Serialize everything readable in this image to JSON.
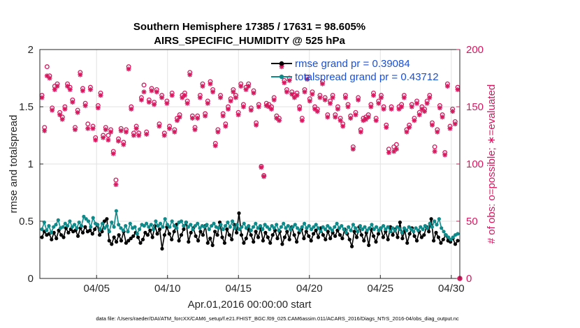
{
  "chart_data": {
    "type": "line",
    "title_line1": "Southern Hemisphere 17385 / 17631 = 98.605%",
    "title_line2": "AIRS_SPECIFIC_HUMIDITY @ 525 hPa",
    "xlabel": "Apr.01,2016 00:00:00 start",
    "ylabel_left": "rmse and totalspread",
    "ylabel_right": "# of obs: o=possible; ∗=evaluated",
    "footer": "data file: /Users/raeder/DAI/ATM_forcXX/CAM6_setup/f.e21.FHIST_BGC.f09_025.CAM6assim.011/ACARS_2016/Diags_NTrS_2016-04/obs_diag_output.nc",
    "x_tick_labels": [
      "04/05",
      "04/10",
      "04/15",
      "04/20",
      "04/25",
      "04/30"
    ],
    "x_tick_days": [
      5,
      10,
      15,
      20,
      25,
      30
    ],
    "xlim": [
      1,
      30.6
    ],
    "ylim_left": [
      0,
      2
    ],
    "y_ticks_left": [
      "0",
      "0.5",
      "1",
      "1.5",
      "2"
    ],
    "ylim_right": [
      0,
      200
    ],
    "y_ticks_right": [
      "0",
      "50",
      "100",
      "150",
      "200"
    ],
    "legend": [
      "rmse grand pr = 0.39084",
      "totalspread grand pr = 0.43712"
    ],
    "colors": {
      "rmse": "#000000",
      "spread": "#0f8a8a",
      "obs": "#d6185e",
      "legend_text": "#1a4fd6"
    },
    "series": [
      {
        "name": "rmse",
        "values": [
          0.36,
          0.41,
          0.38,
          0.39,
          0.34,
          0.4,
          0.35,
          0.42,
          0.38,
          0.36,
          0.44,
          0.4,
          0.43,
          0.41,
          0.42,
          0.37,
          0.44,
          0.4,
          0.45,
          0.41,
          0.42,
          0.39,
          0.43,
          0.47,
          0.38,
          0.41,
          0.5,
          0.52,
          0.33,
          0.3,
          0.36,
          0.32,
          0.38,
          0.33,
          0.41,
          0.31,
          0.33,
          0.35,
          0.37,
          0.4,
          0.36,
          0.31,
          0.34,
          0.4,
          0.38,
          0.42,
          0.36,
          0.46,
          0.39,
          0.43,
          0.26,
          0.38,
          0.45,
          0.39,
          0.34,
          0.41,
          0.47,
          0.33,
          0.38,
          0.43,
          0.49,
          0.32,
          0.4,
          0.44,
          0.37,
          0.33,
          0.41,
          0.38,
          0.46,
          0.31,
          0.35,
          0.29,
          0.41,
          0.38,
          0.49,
          0.36,
          0.31,
          0.43,
          0.38,
          0.34,
          0.47,
          0.4,
          0.57,
          0.38,
          0.31,
          0.35,
          0.43,
          0.38,
          0.32,
          0.41,
          0.36,
          0.44,
          0.33,
          0.4,
          0.36,
          0.31,
          0.38,
          0.42,
          0.35,
          0.41,
          0.3,
          0.36,
          0.41,
          0.34,
          0.45,
          0.38,
          0.32,
          0.4,
          0.43,
          0.35,
          0.41,
          0.37,
          0.33,
          0.39,
          0.42,
          0.36,
          0.44,
          0.38,
          0.34,
          0.41,
          0.35,
          0.4,
          0.37,
          0.42,
          0.38,
          0.35,
          0.43,
          0.39,
          0.34,
          0.28,
          0.41,
          0.36,
          0.45,
          0.38,
          0.33,
          0.4,
          0.29,
          0.43,
          0.37,
          0.32,
          0.39,
          0.44,
          0.36,
          0.41,
          0.34,
          0.45,
          0.38,
          0.43,
          0.36,
          0.49,
          0.35,
          0.42,
          0.31,
          0.39,
          0.44,
          0.37,
          0.33,
          0.41,
          0.36,
          0.38,
          0.45,
          0.41,
          0.52,
          0.33,
          0.4,
          0.36,
          0.31,
          0.34,
          0.38,
          0.33,
          0.32,
          0.35,
          0.3,
          0.33
        ]
      },
      {
        "name": "totalspread",
        "values": [
          0.43,
          0.49,
          0.42,
          0.46,
          0.4,
          0.45,
          0.47,
          0.51,
          0.44,
          0.45,
          0.48,
          0.46,
          0.5,
          0.45,
          0.47,
          0.44,
          0.49,
          0.46,
          0.54,
          0.52,
          0.5,
          0.45,
          0.53,
          0.48,
          0.47,
          0.43,
          0.48,
          0.44,
          0.46,
          0.41,
          0.49,
          0.45,
          0.59,
          0.47,
          0.44,
          0.42,
          0.46,
          0.41,
          0.48,
          0.44,
          0.45,
          0.39,
          0.43,
          0.47,
          0.46,
          0.48,
          0.45,
          0.47,
          0.43,
          0.5,
          0.46,
          0.48,
          0.45,
          0.52,
          0.47,
          0.45,
          0.5,
          0.46,
          0.44,
          0.49,
          0.5,
          0.46,
          0.49,
          0.45,
          0.47,
          0.43,
          0.46,
          0.48,
          0.44,
          0.46,
          0.45,
          0.47,
          0.43,
          0.46,
          0.48,
          0.45,
          0.44,
          0.47,
          0.43,
          0.46,
          0.49,
          0.45,
          0.5,
          0.44,
          0.47,
          0.43,
          0.45,
          0.48,
          0.44,
          0.46,
          0.42,
          0.45,
          0.48,
          0.44,
          0.46,
          0.43,
          0.47,
          0.45,
          0.43,
          0.46,
          0.44,
          0.47,
          0.42,
          0.45,
          0.48,
          0.44,
          0.46,
          0.43,
          0.45,
          0.47,
          0.44,
          0.42,
          0.45,
          0.48,
          0.44,
          0.46,
          0.43,
          0.45,
          0.47,
          0.44,
          0.41,
          0.45,
          0.43,
          0.46,
          0.44,
          0.42,
          0.45,
          0.48,
          0.44,
          0.46,
          0.43,
          0.4,
          0.45,
          0.42,
          0.47,
          0.44,
          0.41,
          0.46,
          0.43,
          0.45,
          0.42,
          0.44,
          0.47,
          0.43,
          0.45,
          0.42,
          0.44,
          0.46,
          0.43,
          0.45,
          0.41,
          0.44,
          0.42,
          0.45,
          0.43,
          0.4,
          0.44,
          0.42,
          0.45,
          0.43,
          0.41,
          0.44,
          0.42,
          0.45,
          0.43,
          0.46,
          0.44,
          0.48,
          0.45,
          0.5,
          0.47,
          0.52,
          0.44,
          0.41,
          0.38,
          0.36,
          0.34,
          0.36,
          0.38,
          0.39
        ]
      },
      {
        "name": "obs_possible",
        "values": [
          160,
          132,
          185,
          177,
          149,
          168,
          170,
          145,
          141,
          150,
          170,
          167,
          156,
          132,
          147,
          180,
          166,
          153,
          135,
          167,
          133,
          123,
          151,
          162,
          125,
          132,
          125,
          130,
          111,
          86,
          122,
          131,
          119,
          130,
          185,
          150,
          127,
          133,
          127,
          158,
          169,
          128,
          156,
          166,
          154,
          165,
          135,
          160,
          127,
          155,
          133,
          162,
          130,
          140,
          143,
          160,
          162,
          155,
          180,
          142,
          132,
          142,
          160,
          170,
          144,
          155,
          172,
          165,
          118,
          130,
          160,
          144,
          135,
          150,
          157,
          165,
          160,
          145,
          170,
          152,
          167,
          170,
          149,
          164,
          136,
          152,
          98,
          90,
          153,
          152,
          150,
          158,
          142,
          140,
          187,
          173,
          165,
          175,
          163,
          160,
          162,
          150,
          140,
          165,
          176,
          157,
          163,
          150,
          148,
          160,
          172,
          158,
          143,
          155,
          160,
          143,
          150,
          140,
          135,
          160,
          152,
          142,
          115,
          145,
          158,
          130,
          140,
          141,
          143,
          152,
          162,
          140,
          155,
          160,
          150,
          134,
          113,
          150,
          115,
          117,
          150,
          152,
          160,
          130,
          134,
          152,
          140,
          155,
          145,
          150,
          148,
          155,
          160,
          136,
          115,
          130,
          151,
          143,
          110,
          170,
          133,
          148,
          137,
          167
        ]
      },
      {
        "name": "obs_evaluated",
        "values": [
          158,
          129,
          177,
          175,
          147,
          165,
          168,
          143,
          139,
          148,
          168,
          165,
          154,
          130,
          145,
          178,
          164,
          151,
          131,
          165,
          131,
          121,
          149,
          160,
          123,
          130,
          121,
          128,
          109,
          82,
          120,
          129,
          117,
          128,
          183,
          148,
          125,
          131,
          125,
          156,
          163,
          126,
          154,
          164,
          152,
          163,
          133,
          158,
          125,
          153,
          131,
          160,
          128,
          138,
          141,
          158,
          160,
          153,
          178,
          140,
          130,
          140,
          158,
          168,
          142,
          153,
          170,
          163,
          116,
          128,
          158,
          142,
          133,
          148,
          155,
          163,
          158,
          143,
          168,
          150,
          165,
          168,
          147,
          162,
          134,
          150,
          97,
          89,
          151,
          150,
          148,
          156,
          140,
          138,
          185,
          171,
          163,
          173,
          161,
          158,
          160,
          148,
          138,
          163,
          174,
          155,
          161,
          148,
          146,
          158,
          170,
          156,
          141,
          153,
          158,
          141,
          148,
          138,
          133,
          158,
          150,
          140,
          113,
          143,
          156,
          128,
          138,
          139,
          141,
          150,
          160,
          138,
          153,
          158,
          148,
          132,
          110,
          148,
          111,
          113,
          148,
          150,
          158,
          128,
          132,
          150,
          138,
          153,
          143,
          148,
          146,
          153,
          158,
          134,
          111,
          128,
          149,
          141,
          108,
          168,
          131,
          146,
          135,
          165
        ]
      }
    ]
  }
}
